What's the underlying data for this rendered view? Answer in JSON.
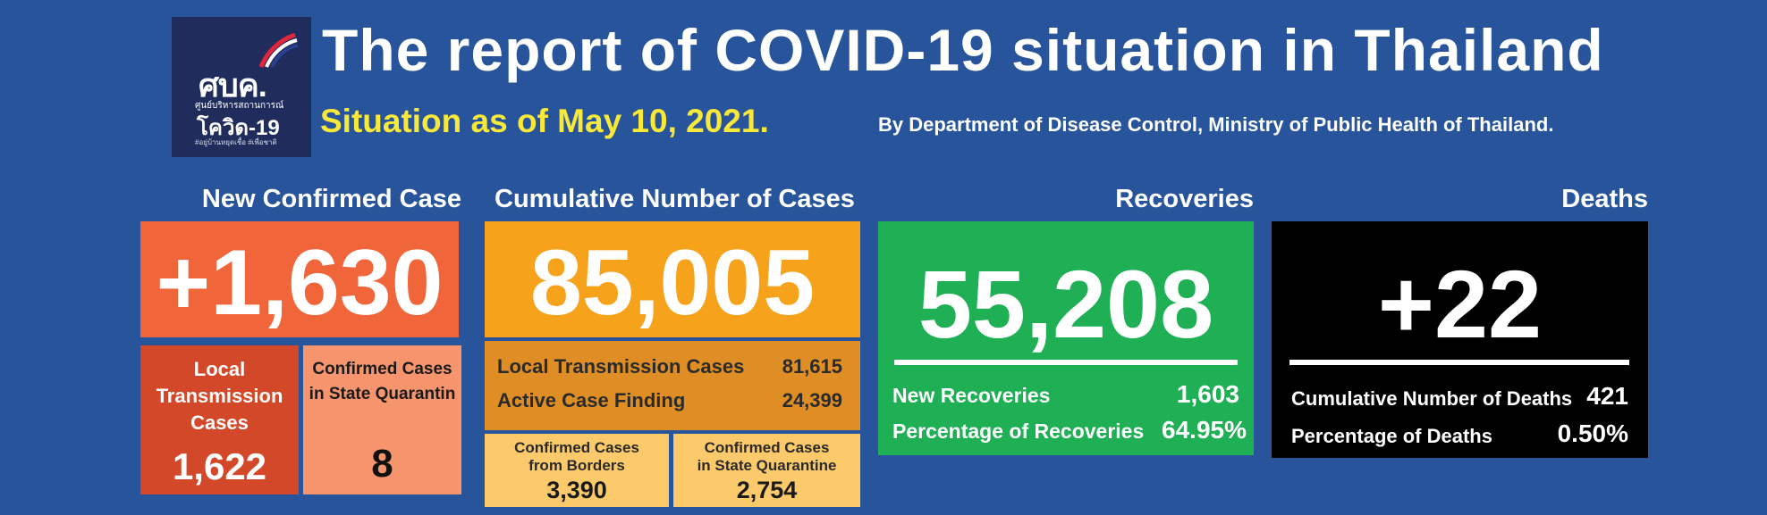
{
  "logo": {
    "mark": "ศบค.",
    "line1": "ศูนย์บริหารสถานการณ์",
    "line2": "โควิด-19",
    "line3": "#อยู่บ้านหยุดเชื้อ #เพื่อชาติ"
  },
  "header": {
    "title": "The report of COVID-19 situation in Thailand",
    "subtitle": "Situation as of May 10, 2021.",
    "source": "By Department of Disease Control, Ministry of Public Health of Thailand."
  },
  "new_confirmed": {
    "heading": "New Confirmed Case",
    "value": "+1,630",
    "local": {
      "label_line1": "Local",
      "label_line2": "Transmission",
      "label_line3": "Cases",
      "value": "1,622"
    },
    "state_quarantine": {
      "label_line1": "Confirmed Cases",
      "label_line2": "in State Quarantin",
      "value": "8"
    }
  },
  "cumulative": {
    "heading": "Cumulative Number of Cases",
    "value": "85,005",
    "local_label": "Local Transmission Cases",
    "local_value": "81,615",
    "active_label": "Active Case Finding",
    "active_value": "24,399",
    "borders": {
      "label_line1": "Confirmed Cases",
      "label_line2": "from Borders",
      "value": "3,390"
    },
    "state_quarantine": {
      "label_line1": "Confirmed Cases",
      "label_line2": "in State Quarantine",
      "value": "2,754"
    }
  },
  "recoveries": {
    "heading": "Recoveries",
    "value": "55,208",
    "new_label": "New Recoveries",
    "new_value": "1,603",
    "pct_label": "Percentage of Recoveries",
    "pct_value": "64.95%"
  },
  "deaths": {
    "heading": "Deaths",
    "value": "+22",
    "cum_label": "Cumulative Number of Deaths",
    "cum_value": "421",
    "pct_label": "Percentage of Deaths",
    "pct_value": "0.50%"
  },
  "colors": {
    "background": "#27549b",
    "new_confirmed": "#f0653a",
    "local": "#d24828",
    "state_quarantine": "#f6946d",
    "cumulative": "#f7a21b",
    "cumulative_detail": "#df8e25",
    "cumulative_sub": "#fdca6b",
    "recoveries": "#1faf55",
    "deaths": "#000000",
    "subtitle": "#f7e83a"
  }
}
